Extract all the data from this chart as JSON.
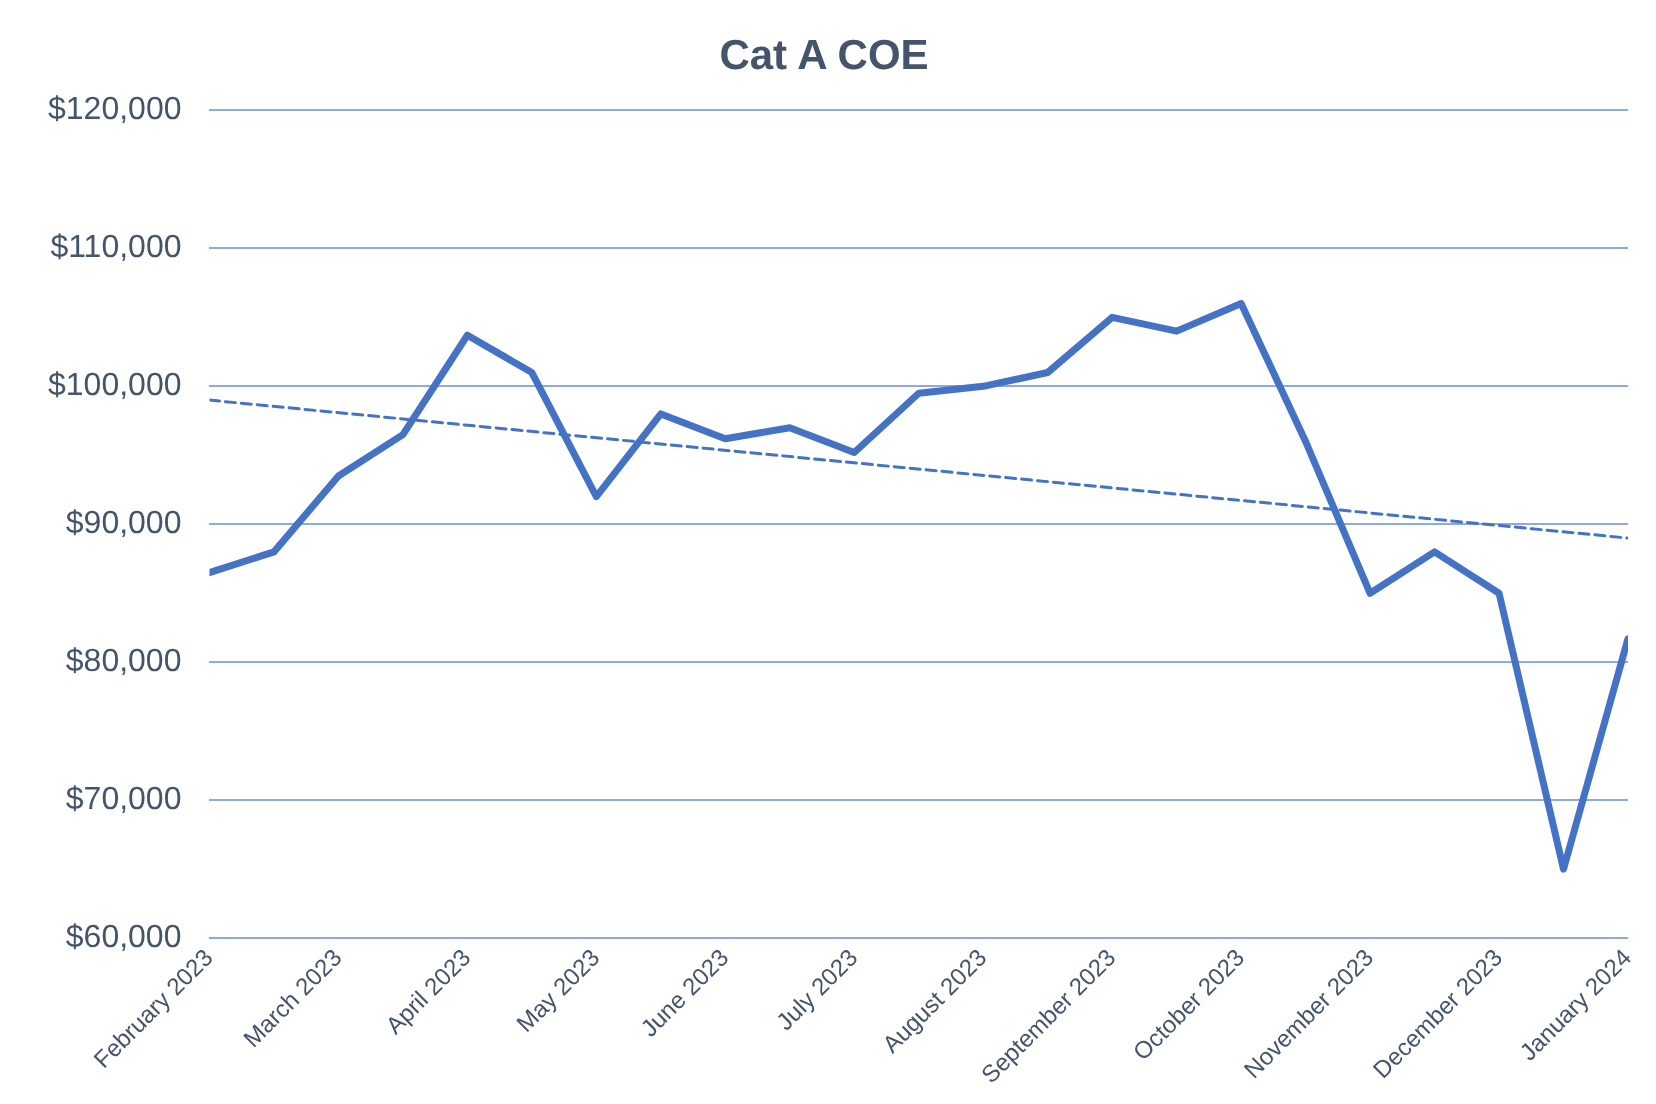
{
  "chart_data": {
    "type": "line",
    "title": "Cat A COE",
    "categories": [
      "February 2023",
      null,
      "March 2023",
      null,
      "April 2023",
      null,
      "May 2023",
      null,
      "June 2023",
      null,
      "July 2023",
      null,
      "August 2023",
      null,
      "September 2023",
      null,
      "October 2023",
      null,
      "November 2023",
      null,
      "December 2023",
      null,
      "January 2024"
    ],
    "series": [
      {
        "color": "#4472c4",
        "values": [
          86500,
          88000,
          93500,
          96500,
          103700,
          101000,
          92000,
          98000,
          96200,
          97000,
          95200,
          99500,
          100000,
          101000,
          105000,
          104000,
          106000,
          96000,
          85000,
          88000,
          85000,
          65000,
          81700
        ]
      },
      {
        "type": "line",
        "color": "#4472c4",
        "line_style": "dashed",
        "x": [
          "February 2023",
          "January 2024"
        ],
        "values": [
          99000,
          89000
        ]
      }
    ],
    "ylim": [
      60000,
      120000
    ],
    "yticks": [
      {
        "value": 60000,
        "label": "$60,000"
      },
      {
        "value": 70000,
        "label": "$70,000"
      },
      {
        "value": 80000,
        "label": "$80,000"
      },
      {
        "value": 90000,
        "label": "$90,000"
      },
      {
        "value": 100000,
        "label": "$100,000"
      },
      {
        "value": 110000,
        "label": "$110,000"
      },
      {
        "value": 120000,
        "label": "$120,000"
      }
    ],
    "grid": "y",
    "legend": false,
    "marker": "none",
    "line_style": "solid"
  }
}
